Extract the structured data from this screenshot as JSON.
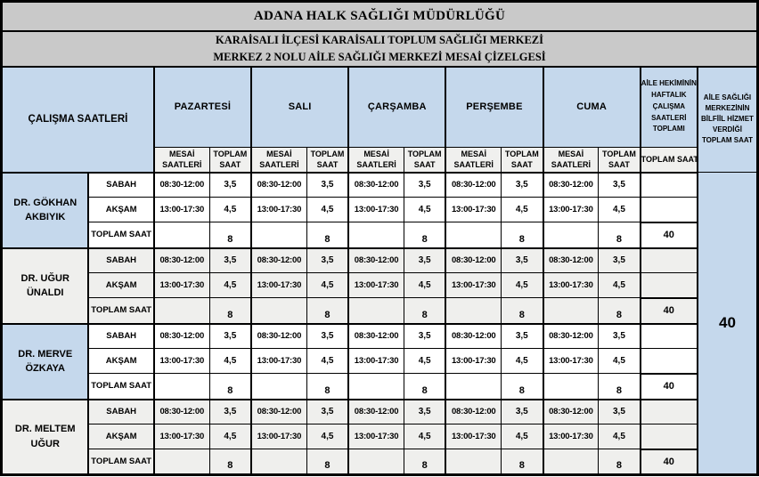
{
  "document": {
    "title": "ADANA HALK SAĞLIĞI MÜDÜRLÜĞÜ",
    "subtitle_line1": "KARAİSALI İLÇESİ KARAİSALI TOPLUM SAĞLIĞI MERKEZİ",
    "subtitle_line2": "MERKEZ 2 NOLU AİLE SAĞLIĞI MERKEZİ MESAİ  ÇİZELGESİ"
  },
  "header": {
    "working_hours_label": "ÇALIŞMA SAATLERİ",
    "days": [
      "PAZARTESİ",
      "SALI",
      "ÇARŞAMBA",
      "PERŞEMBE",
      "CUMA"
    ],
    "sub_mesai": "MESAİ SAATLERİ",
    "sub_toplam": "TOPLAM SAAT",
    "weekly_total_header": "AİLE HEKİMİNİN HAFTALIK ÇALIŞMA SAATLERİ TOPLAMI",
    "weekly_total_sub": "TOPLAM SAAT",
    "center_total_header": "AİLE SAĞLIĞI MERKEZİNİN BİLFİİL HİZMET VERDİĞİ TOPLAM SAAT"
  },
  "row_labels": {
    "morning": "SABAH",
    "evening": "AKŞAM",
    "total": "TOPLAM SAAT"
  },
  "doctors": [
    {
      "name": "DR. GÖKHAN AKBIYIK",
      "weekly_total": "40",
      "days": [
        {
          "morning_time": "08:30-12:00",
          "morning_hours": "3,5",
          "evening_time": "13:00-17:30",
          "evening_hours": "4,5",
          "daily_total": "8"
        },
        {
          "morning_time": "08:30-12:00",
          "morning_hours": "3,5",
          "evening_time": "13:00-17:30",
          "evening_hours": "4,5",
          "daily_total": "8"
        },
        {
          "morning_time": "08:30-12:00",
          "morning_hours": "3,5",
          "evening_time": "13:00-17:30",
          "evening_hours": "4,5",
          "daily_total": "8"
        },
        {
          "morning_time": "08:30-12:00",
          "morning_hours": "3,5",
          "evening_time": "13:00-17:30",
          "evening_hours": "4,5",
          "daily_total": "8"
        },
        {
          "morning_time": "08:30-12:00",
          "morning_hours": "3,5",
          "evening_time": "13:00-17:30",
          "evening_hours": "4,5",
          "daily_total": "8"
        }
      ]
    },
    {
      "name": "DR. UĞUR ÜNALDI",
      "weekly_total": "40",
      "days": [
        {
          "morning_time": "08:30-12:00",
          "morning_hours": "3,5",
          "evening_time": "13:00-17:30",
          "evening_hours": "4,5",
          "daily_total": "8"
        },
        {
          "morning_time": "08:30-12:00",
          "morning_hours": "3,5",
          "evening_time": "13:00-17:30",
          "evening_hours": "4,5",
          "daily_total": "8"
        },
        {
          "morning_time": "08:30-12:00",
          "morning_hours": "3,5",
          "evening_time": "13:00-17:30",
          "evening_hours": "4,5",
          "daily_total": "8"
        },
        {
          "morning_time": "08:30-12:00",
          "morning_hours": "3,5",
          "evening_time": "13:00-17:30",
          "evening_hours": "4,5",
          "daily_total": "8"
        },
        {
          "morning_time": "08:30-12:00",
          "morning_hours": "3,5",
          "evening_time": "13:00-17:30",
          "evening_hours": "4,5",
          "daily_total": "8"
        }
      ]
    },
    {
      "name": "DR. MERVE ÖZKAYA",
      "weekly_total": "40",
      "days": [
        {
          "morning_time": "08:30-12:00",
          "morning_hours": "3,5",
          "evening_time": "13:00-17:30",
          "evening_hours": "4,5",
          "daily_total": "8"
        },
        {
          "morning_time": "08:30-12:00",
          "morning_hours": "3,5",
          "evening_time": "13:00-17:30",
          "evening_hours": "4,5",
          "daily_total": "8"
        },
        {
          "morning_time": "08:30-12:00",
          "morning_hours": "3,5",
          "evening_time": "13:00-17:30",
          "evening_hours": "4,5",
          "daily_total": "8"
        },
        {
          "morning_time": "08:30-12:00",
          "morning_hours": "3,5",
          "evening_time": "13:00-17:30",
          "evening_hours": "4,5",
          "daily_total": "8"
        },
        {
          "morning_time": "08:30-12:00",
          "morning_hours": "3,5",
          "evening_time": "13:00-17:30",
          "evening_hours": "4,5",
          "daily_total": "8"
        }
      ]
    },
    {
      "name": "DR. MELTEM UĞUR",
      "weekly_total": "40",
      "days": [
        {
          "morning_time": "08:30-12:00",
          "morning_hours": "3,5",
          "evening_time": "13:00-17:30",
          "evening_hours": "4,5",
          "daily_total": "8"
        },
        {
          "morning_time": "08:30-12:00",
          "morning_hours": "3,5",
          "evening_time": "13:00-17:30",
          "evening_hours": "4,5",
          "daily_total": "8"
        },
        {
          "morning_time": "08:30-12:00",
          "morning_hours": "3,5",
          "evening_time": "13:00-17:30",
          "evening_hours": "4,5",
          "daily_total": "8"
        },
        {
          "morning_time": "08:30-12:00",
          "morning_hours": "3,5",
          "evening_time": "13:00-17:30",
          "evening_hours": "4,5",
          "daily_total": "8"
        },
        {
          "morning_time": "08:30-12:00",
          "morning_hours": "3,5",
          "evening_time": "13:00-17:30",
          "evening_hours": "4,5",
          "daily_total": "8"
        }
      ]
    }
  ],
  "center_total": "40",
  "colors": {
    "header_blue": "#c5d8ec",
    "title_gray": "#c9c9c9",
    "band_gray": "#efefed",
    "subheader_gray": "#f0f0ee",
    "border_black": "#000000",
    "cell_white": "#ffffff"
  }
}
